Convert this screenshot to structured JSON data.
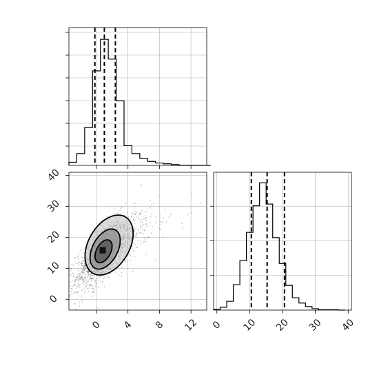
{
  "chart_data": [
    {
      "type": "histogram",
      "panel": "top-left",
      "variable": "x",
      "bin_edges": [
        -3.5,
        -2.5,
        -1.5,
        -0.5,
        0.5,
        1.5,
        2.5,
        3.5,
        4.5,
        5.5,
        6.5,
        7.5,
        8.5,
        9.5,
        10.5,
        11.5,
        12.5,
        13.5,
        14.5
      ],
      "counts": [
        4,
        15,
        48,
        120,
        160,
        135,
        82,
        25,
        15,
        9,
        5,
        3,
        2,
        1,
        0,
        0,
        0,
        0
      ],
      "quantile_lines": [
        -0.2,
        1.0,
        2.4
      ],
      "xlim": [
        -3.5,
        14.0
      ],
      "ylim": [
        0,
        175
      ],
      "grid": true
    },
    {
      "type": "scatter-density",
      "panel": "bottom-left",
      "x_variable": "x",
      "y_variable": "y",
      "xlim": [
        -3.5,
        14.0
      ],
      "ylim": [
        -3.5,
        41.0
      ],
      "x_ticks": [
        "0",
        "4",
        "8",
        "12"
      ],
      "x_tick_values": [
        0,
        4,
        8,
        12
      ],
      "y_ticks": [
        "0",
        "10",
        "20",
        "30",
        "40"
      ],
      "y_tick_values": [
        0,
        10,
        20,
        30,
        40
      ],
      "center": [
        1.0,
        15.5
      ],
      "spread": [
        1.8,
        6.0
      ],
      "correlation": 0.72,
      "contours": [
        {
          "level": "inner",
          "center": [
            0.9,
            15.5
          ],
          "semi_axes": [
            0.9,
            4.0
          ],
          "angle_deg": -62
        },
        {
          "level": "middle",
          "center": [
            1.1,
            16.2
          ],
          "semi_axes": [
            1.6,
            7.0
          ],
          "angle_deg": -62
        },
        {
          "level": "outer",
          "center": [
            1.6,
            17.5
          ],
          "semi_axes": [
            2.6,
            10.5
          ],
          "angle_deg": -60
        }
      ],
      "grid": true
    },
    {
      "type": "histogram",
      "panel": "bottom-right",
      "variable": "y",
      "bin_edges": [
        -1,
        1,
        3,
        5,
        7,
        9,
        11,
        13,
        15,
        17,
        19,
        21,
        23,
        25,
        27,
        29,
        31,
        33,
        35,
        37,
        39
      ],
      "counts": [
        2,
        8,
        25,
        72,
        140,
        220,
        295,
        360,
        300,
        205,
        132,
        70,
        35,
        20,
        10,
        4,
        1,
        1,
        1,
        0
      ],
      "quantile_lines": [
        10.5,
        15.3,
        20.6
      ],
      "xlim": [
        -1.0,
        41.0
      ],
      "ylim": [
        0,
        390
      ],
      "x_ticks": [
        "0",
        "10",
        "20",
        "30",
        "40"
      ],
      "x_tick_values": [
        0,
        10,
        20,
        30,
        40
      ],
      "grid": true
    }
  ]
}
